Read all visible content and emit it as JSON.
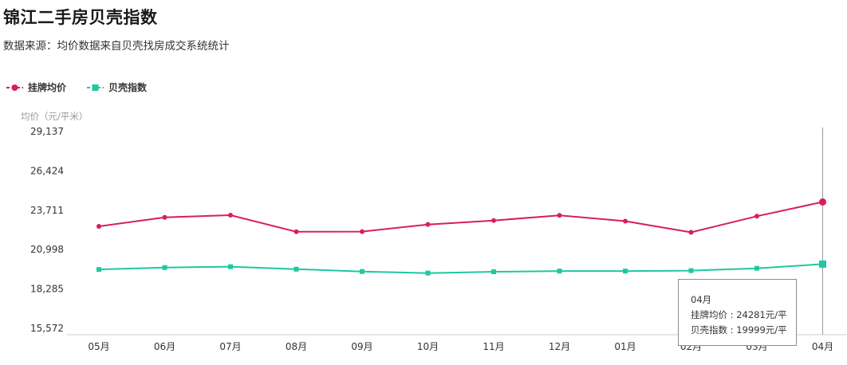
{
  "page": {
    "title": "锦江二手房贝壳指数",
    "subtitle": "数据来源：均价数据来自贝壳找房成交系统统计"
  },
  "legend": {
    "items": [
      {
        "label": "挂牌均价",
        "color": "#d81e5b",
        "icon": "circle-marker-icon"
      },
      {
        "label": "贝壳指数",
        "color": "#1ec8a0",
        "icon": "square-marker-icon"
      }
    ]
  },
  "chart_data": {
    "type": "line",
    "ylabel": "均价（元/平米）",
    "ylim": [
      15572,
      29137
    ],
    "yticks": [
      15572,
      18285,
      20998,
      23711,
      26424,
      29137
    ],
    "ytick_labels": [
      "15,572",
      "18,285",
      "20,998",
      "23,711",
      "26,424",
      "29,137"
    ],
    "categories": [
      "05月",
      "06月",
      "07月",
      "08月",
      "09月",
      "10月",
      "11月",
      "12月",
      "01月",
      "02月",
      "03月",
      "04月"
    ],
    "series": [
      {
        "name": "挂牌均价",
        "color": "#d81e5b",
        "marker": "circle",
        "values": [
          22600,
          23220,
          23370,
          22230,
          22240,
          22730,
          23000,
          23360,
          22960,
          22190,
          23300,
          24281
        ]
      },
      {
        "name": "贝壳指数",
        "color": "#1ec8a0",
        "marker": "square",
        "values": [
          19630,
          19760,
          19820,
          19650,
          19490,
          19380,
          19470,
          19520,
          19520,
          19550,
          19710,
          19999
        ]
      }
    ],
    "grid": false,
    "legend_position": "top-left",
    "highlight_category": "04月"
  },
  "tooltip": {
    "title": "04月",
    "rows": [
      {
        "label": "挂牌均价",
        "value": "24281元/平"
      },
      {
        "label": "贝壳指数",
        "value": "19999元/平"
      }
    ]
  }
}
